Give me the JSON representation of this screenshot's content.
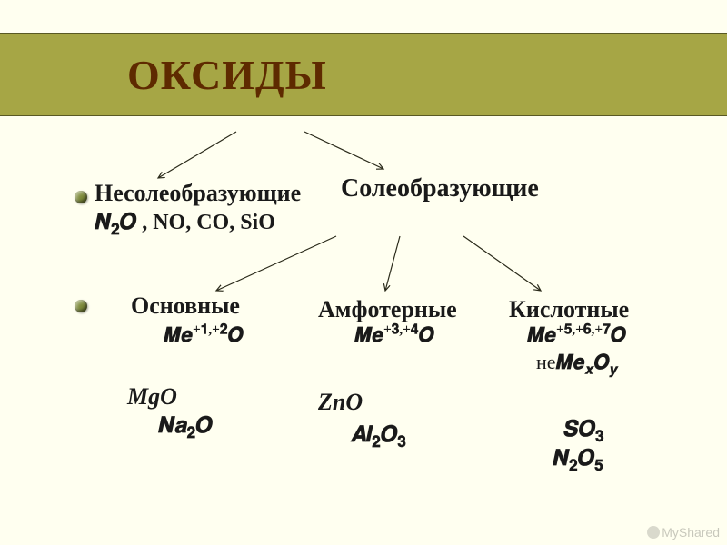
{
  "colors": {
    "background": "#fffff0",
    "header_band_bg": "#a6a645",
    "header_band_border": "#595923",
    "title_text": "#5e2a00",
    "bullet": "#7d8a3a",
    "arrow": "#2a2a1a",
    "body_text": "#1a1a1a"
  },
  "title": "ОКСИДЫ",
  "branches": {
    "non_salt_forming": {
      "label": "Несолеобразующие",
      "examples_html": "𝑵<sub>𝟐</sub>𝑶 , NO, CO, SiO"
    },
    "salt_forming": {
      "label": "Солеобразующие",
      "children": {
        "basic": {
          "label": "Основные",
          "rule_html": "𝑴𝒆<sup>+𝟏,+𝟐</sup>𝑶",
          "examples": {
            "line1": "MgO",
            "line2_html": "𝑵𝒂<sub>𝟐</sub>𝑶"
          }
        },
        "amphoteric": {
          "label": "Амфотерные",
          "rule_html": "𝑴𝒆<sup>+𝟑,+𝟒</sup>𝑶",
          "examples": {
            "line1": "ZnO",
            "line2_html": "𝑨𝒍<sub>𝟐</sub>𝑶<sub>𝟑</sub>"
          }
        },
        "acidic": {
          "label": "Кислотные",
          "rule_html": "𝑴𝒆<sup>+𝟓,+𝟔,+𝟕</sup>𝑶",
          "not_prefix": "не",
          "not_rule_html": "𝑴𝒆<sub>𝒙</sub>𝑶<sub>𝒚</sub>",
          "examples": {
            "line1_html": "𝑺𝑶<sub>𝟑</sub>",
            "line2_html": "𝑵<sub>𝟐</sub>𝑶<sub>𝟓</sub>"
          }
        }
      }
    }
  },
  "watermark": "MyShared"
}
